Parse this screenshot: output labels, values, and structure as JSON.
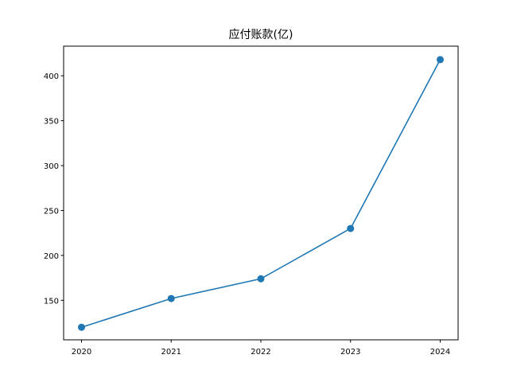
{
  "chart_data": {
    "type": "line",
    "title": "应付账款(亿)",
    "xlabel": "",
    "ylabel": "",
    "x": [
      "2020",
      "2021",
      "2022",
      "2023",
      "2024"
    ],
    "series": [
      {
        "values": [
          120,
          152,
          174,
          230,
          418
        ]
      }
    ],
    "ylim": [
      106,
      433
    ],
    "y_ticks": [
      150,
      200,
      250,
      300,
      350,
      400
    ],
    "grid": false,
    "legend": "none",
    "color": "#1f77b4"
  }
}
